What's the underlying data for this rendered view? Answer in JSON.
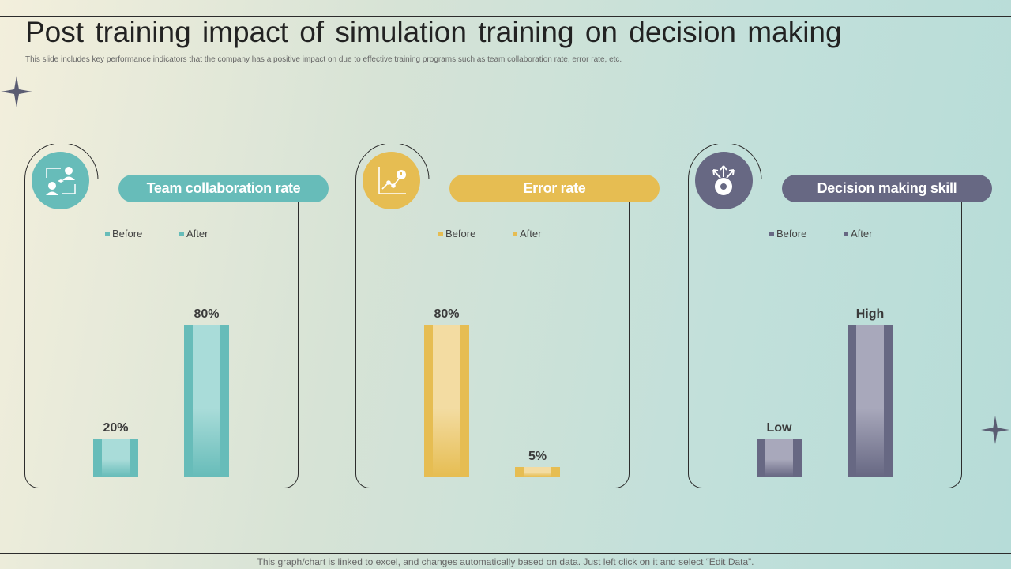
{
  "page": {
    "title": "Post training impact of simulation training on decision making",
    "subtitle": "This slide includes key performance indicators that the company has a positive impact on due to effective training programs such as team collaboration rate, error rate, etc.",
    "footer": "This graph/chart is linked to excel,  and changes automatically based on data. Just left click on it and select “Edit Data”."
  },
  "colors": {
    "teal": "#67bcb9",
    "teal_light": "#a9dcd9",
    "gold": "#e6bd52",
    "gold_light": "#f3dca2",
    "slate": "#676883",
    "slate_light": "#a8a8bb"
  },
  "chart_data": [
    {
      "type": "bar",
      "title": "Team collaboration rate",
      "icon": "team-collaboration-icon",
      "legend": [
        "Before",
        "After"
      ],
      "categories": [
        "Before",
        "After"
      ],
      "values": [
        20,
        80
      ],
      "labels": [
        "20%",
        "80%"
      ],
      "ylim": [
        0,
        100
      ],
      "unit": "%"
    },
    {
      "type": "bar",
      "title": "Error rate",
      "icon": "growth-chart-icon",
      "legend": [
        "Before",
        "After"
      ],
      "categories": [
        "Before",
        "After"
      ],
      "values": [
        80,
        5
      ],
      "labels": [
        "80%",
        "5%"
      ],
      "ylim": [
        0,
        100
      ],
      "unit": "%"
    },
    {
      "type": "bar",
      "title": "Decision making skill",
      "icon": "decision-making-icon",
      "legend": [
        "Before",
        "After"
      ],
      "categories": [
        "Before",
        "After"
      ],
      "values": [
        20,
        80
      ],
      "labels": [
        "Low",
        "High"
      ],
      "ylim": [
        0,
        100
      ],
      "unit": ""
    }
  ]
}
